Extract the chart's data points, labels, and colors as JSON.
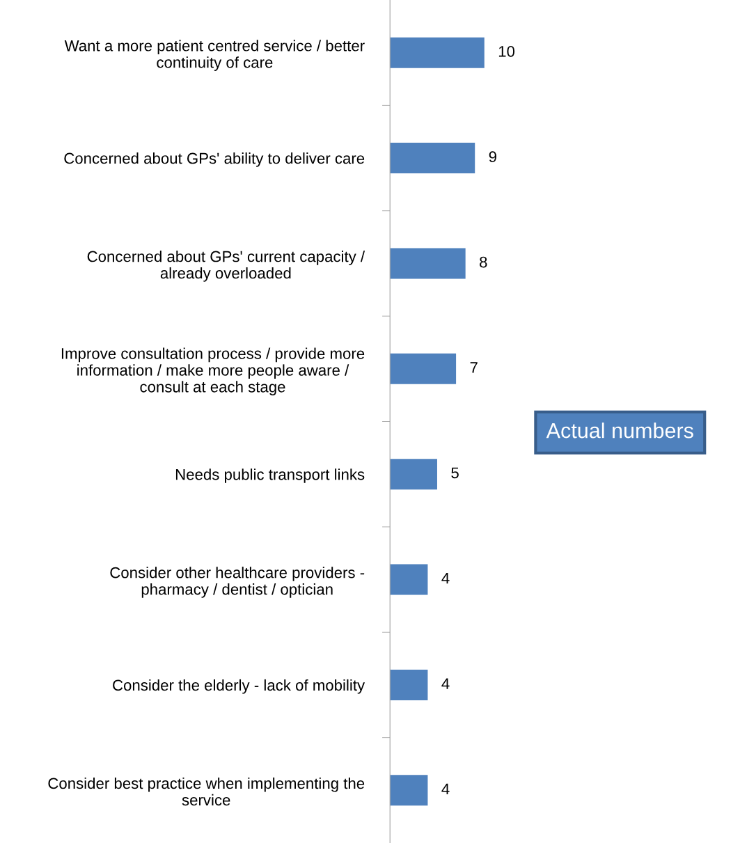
{
  "chart_data": {
    "type": "bar",
    "orientation": "horizontal",
    "categories": [
      "Want a more patient centred service / better\ncontinuity of care",
      "Concerned about GPs' ability to deliver care",
      "Concerned about GPs' current capacity /\nalready overloaded",
      "Improve consultation process / provide more\ninformation / make more people aware /\nconsult at each stage",
      "Needs public transport links",
      "Consider other healthcare providers -\npharmacy / dentist / optician",
      "Consider the elderly - lack of mobility",
      "Consider best practice when implementing the\nservice"
    ],
    "values": [
      10,
      9,
      8,
      7,
      5,
      4,
      4,
      4
    ],
    "color": "#4f81bd",
    "data_labels": true,
    "grid": false,
    "legend": false,
    "annotations": [
      "Actual numbers"
    ]
  }
}
